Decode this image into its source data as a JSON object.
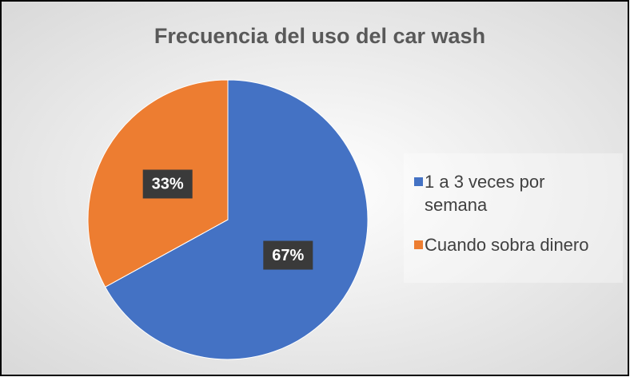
{
  "chart_data": {
    "type": "pie",
    "title": "Frecuencia del uso del car wash",
    "categories": [
      "1 a 3 veces por semana",
      "Cuando sobra dinero"
    ],
    "values": [
      67,
      33
    ],
    "value_labels": [
      "67%",
      "33%"
    ],
    "colors": [
      "#4472c4",
      "#ed7d31"
    ],
    "legend": "right"
  }
}
